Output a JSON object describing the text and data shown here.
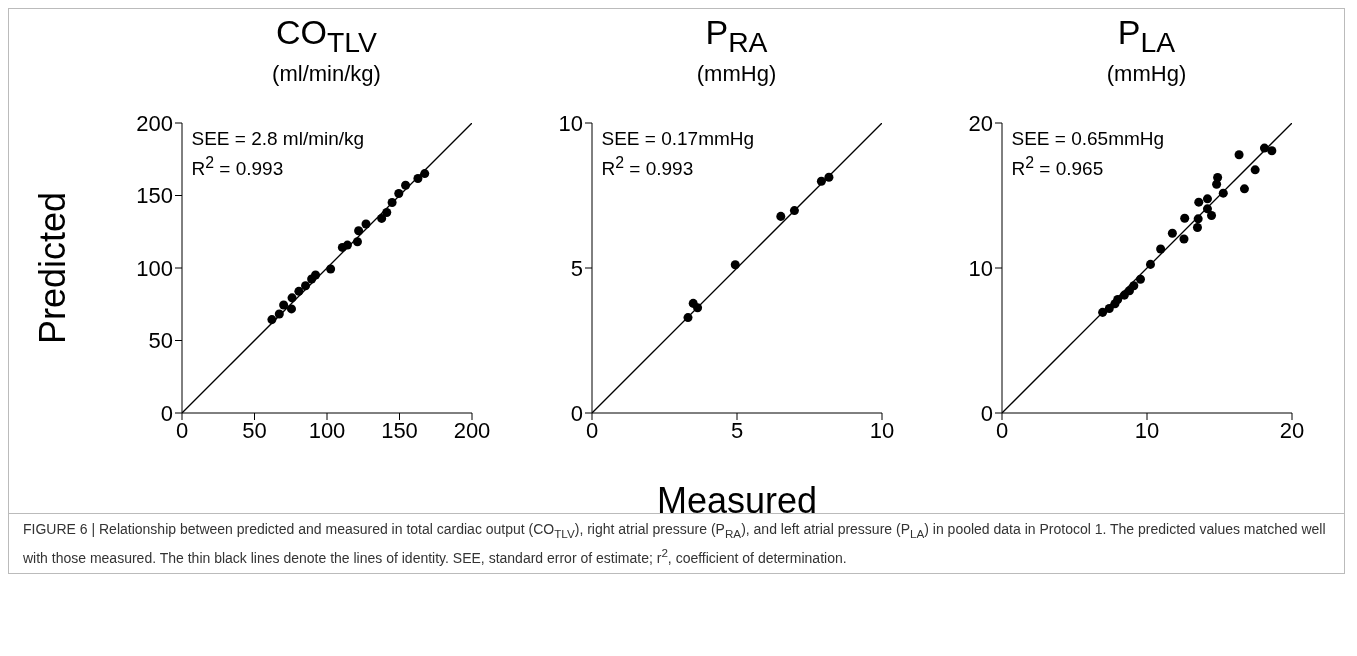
{
  "chart_data": [
    {
      "type": "scatter",
      "title": "CO$_{TLV}$",
      "subtitle": "(ml/min/kg)",
      "ylabel": "Predicted",
      "xlim": [
        0,
        200
      ],
      "ylim": [
        0,
        200
      ],
      "xticks": [
        0,
        50,
        100,
        150,
        200
      ],
      "yticks": [
        0,
        50,
        100,
        150,
        200
      ],
      "annotations": [
        "SEE = 2.8 ml/min/kg",
        "R$^{2}$ = 0.993",
        "FIGURE 6 | Relationship between predicted and measured in total cardiac output (CO$_{TLV}$), right atrial pressure (P$_{RA}$), and left atrial pressure (P$_{LA}$) in pooled data in Protocol 1. The predicted values matched well with those measured. The thin black lines denote the lines of identity. SEE, standard error of estimate; r$^{2}$, coefficient of determination."
      ],
      "series": [
        {
          "marker": "circle",
          "color": "#000000",
          "x": [
            62,
            67.1,
            70.1,
            75.9,
            75.5,
            80.6,
            85.2,
            89.4,
            92.1,
            102.5,
            110.6,
            114.1,
            121,
            121.8,
            126.9,
            137.7,
            141.2,
            144.9,
            149.5,
            154.2,
            162.7,
            167.4
          ],
          "values": [
            64.4,
            68.3,
            74.5,
            79.4,
            71.8,
            83.9,
            87.8,
            92.4,
            95.2,
            99.3,
            114.2,
            115.8,
            118.1,
            125.7,
            130.3,
            134.2,
            138.3,
            145.2,
            151.4,
            157.1,
            161.7,
            165.1
          ]
        },
        {
          "type": "line",
          "color": "#000000",
          "x": [
            0,
            200
          ],
          "values": [
            0,
            200
          ]
        }
      ]
    },
    {
      "type": "scatter",
      "title": "P$_{RA}$",
      "subtitle": "(mmHg)",
      "xlabel": "Measured",
      "xlim": [
        0,
        10
      ],
      "ylim": [
        0,
        10
      ],
      "xticks": [
        0,
        5,
        10
      ],
      "yticks": [
        0,
        5,
        10
      ],
      "annotations": [
        "SEE = 0.17mmHg",
        "R$^{2}$ = 0.993"
      ],
      "series": [
        {
          "marker": "circle",
          "color": "#000000",
          "x": [
            3.31,
            3.64,
            3.49,
            4.94,
            6.51,
            6.98,
            7.91,
            8.17
          ],
          "values": [
            3.29,
            3.63,
            3.78,
            5.11,
            6.78,
            6.98,
            7.99,
            8.13
          ]
        },
        {
          "type": "line",
          "color": "#000000",
          "x": [
            0,
            10
          ],
          "values": [
            0,
            10
          ]
        }
      ]
    },
    {
      "type": "scatter",
      "title": "P$_{LA}$",
      "subtitle": "(mmHg)",
      "xlim": [
        0,
        20
      ],
      "ylim": [
        0,
        20
      ],
      "xticks": [
        0,
        10,
        20
      ],
      "yticks": [
        0,
        10,
        20
      ],
      "annotations": [
        "SEE = 0.65mmHg",
        "R$^{2}$ = 0.965"
      ],
      "series": [
        {
          "marker": "circle",
          "color": "#000000",
          "x": [
            6.94,
            7.4,
            7.79,
            7.98,
            8.44,
            8.79,
            9.09,
            9.55,
            10.24,
            10.94,
            11.75,
            12.55,
            12.6,
            13.48,
            13.53,
            13.57,
            14.17,
            14.17,
            14.45,
            14.8,
            14.87,
            15.26,
            16.35,
            16.72,
            17.46,
            18.1,
            18.61
          ],
          "values": [
            6.94,
            7.21,
            7.53,
            7.83,
            8.13,
            8.43,
            8.78,
            9.22,
            10.25,
            11.31,
            12.4,
            12,
            13.43,
            12.79,
            13.39,
            14.54,
            14.77,
            14.08,
            13.62,
            15.78,
            16.24,
            15.16,
            17.81,
            15.46,
            16.77,
            18.27,
            18.09
          ]
        },
        {
          "type": "line",
          "color": "#000000",
          "x": [
            0,
            20
          ],
          "values": [
            0,
            20
          ]
        }
      ]
    }
  ]
}
